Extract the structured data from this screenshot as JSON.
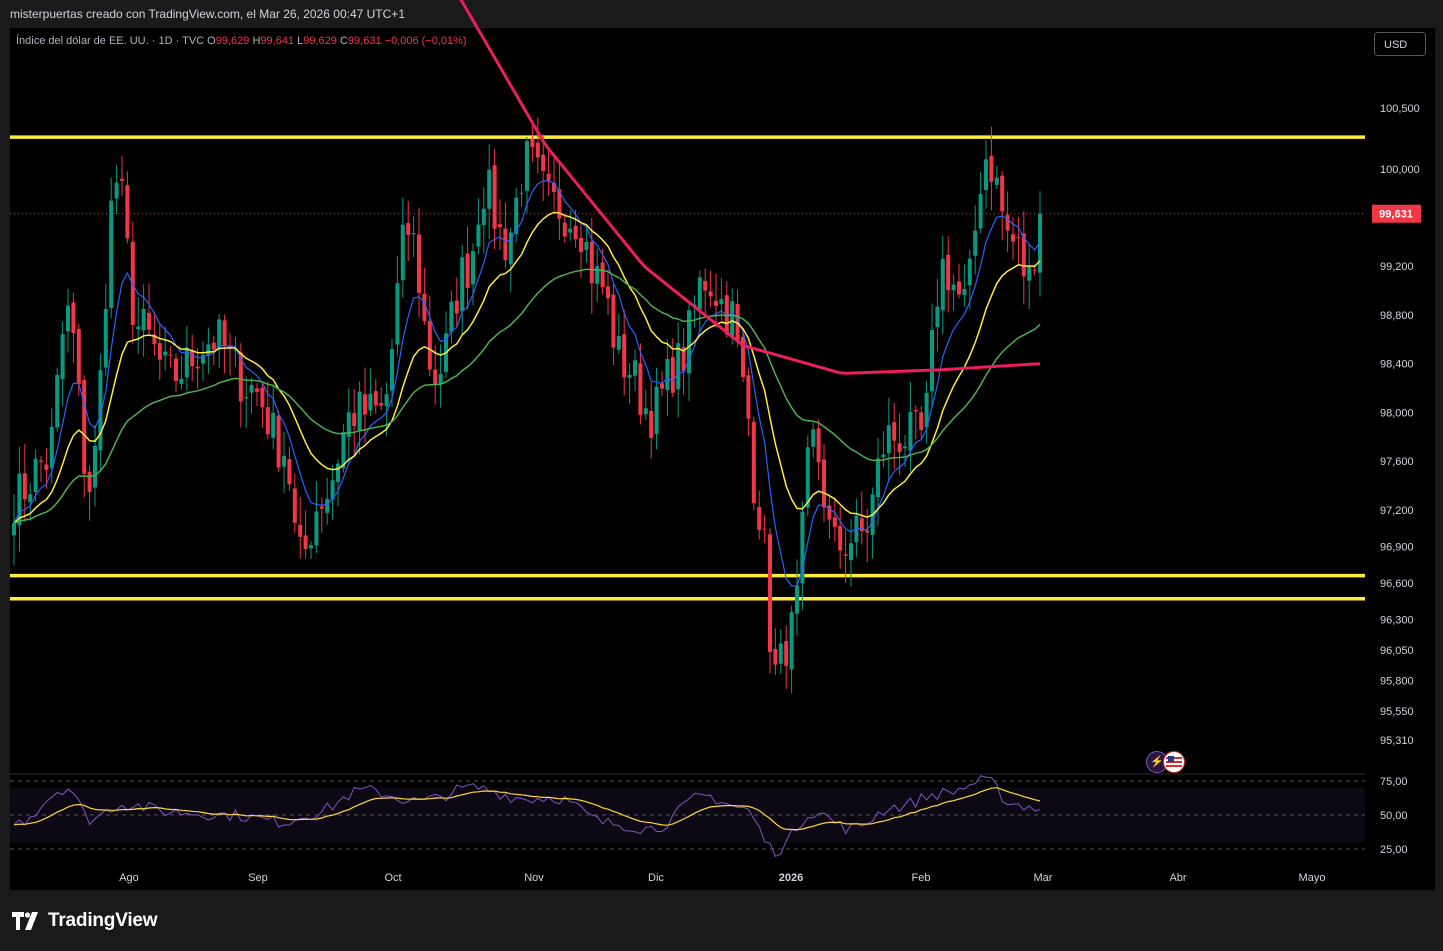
{
  "header": {
    "credit": "misterpuertas creado con TradingView.com, el Mar 26, 2026 00:47 UTC+1",
    "symbol": "Índice del dólar de EE. UU. · 1D · TVC",
    "o_label": "O",
    "o_value": "99,629",
    "h_label": "H",
    "h_value": "99,641",
    "l_label": "L",
    "l_value": "99,629",
    "c_label": "C",
    "c_value": "99,631",
    "change": "−0,006 (−0,01%)"
  },
  "currency_button": "USD",
  "price_tag": "99,631",
  "branding": {
    "wordmark": "TradingView"
  },
  "colors": {
    "up": "#089981",
    "down": "#f23645",
    "sr_lines": "#ffeb3b",
    "ma_fast": "#2962ff",
    "ma_mid": "#ffeb3b",
    "ma_slow": "#4caf50",
    "ma_long": "#ec1e5c",
    "rsi": "#7e57c2",
    "rsi_ma": "#fdd835"
  },
  "chart_data": {
    "type": "candlestick",
    "symbol": "Índice del dólar de EE. UU.",
    "timeframe": "1D",
    "price_axis": [
      "100,500",
      "100,000",
      "99,200",
      "98,800",
      "98,400",
      "98,000",
      "97,600",
      "97,200",
      "96,900",
      "96,600",
      "96,300",
      "96,050",
      "95,800",
      "95,550",
      "95,310"
    ],
    "time_axis": [
      "Ago",
      "Sep",
      "Oct",
      "Nov",
      "Dic",
      "2026",
      "Feb",
      "Mar",
      "Abr",
      "Mayo"
    ],
    "last_price": 99.631,
    "horizontal_levels": [
      100.26,
      96.66,
      96.47
    ],
    "anchors": [
      {
        "t": 0,
        "p": 97.3
      },
      {
        "t": 6,
        "p": 97.6
      },
      {
        "t": 10,
        "p": 98.8
      },
      {
        "t": 14,
        "p": 97.4
      },
      {
        "t": 19,
        "p": 99.9
      },
      {
        "t": 23,
        "p": 98.7
      },
      {
        "t": 29,
        "p": 98.3
      },
      {
        "t": 37,
        "p": 98.6
      },
      {
        "t": 44,
        "p": 98.2
      },
      {
        "t": 50,
        "p": 97.7
      },
      {
        "t": 53,
        "p": 96.8
      },
      {
        "t": 57,
        "p": 97.3
      },
      {
        "t": 63,
        "p": 98.0
      },
      {
        "t": 68,
        "p": 98.0
      },
      {
        "t": 73,
        "p": 99.5
      },
      {
        "t": 78,
        "p": 98.3
      },
      {
        "t": 84,
        "p": 99.2
      },
      {
        "t": 87,
        "p": 99.85
      },
      {
        "t": 91,
        "p": 99.4
      },
      {
        "t": 95,
        "p": 100.05
      },
      {
        "t": 100,
        "p": 99.7
      },
      {
        "t": 104,
        "p": 99.6
      },
      {
        "t": 108,
        "p": 99.1
      },
      {
        "t": 113,
        "p": 98.4
      },
      {
        "t": 118,
        "p": 98.0
      },
      {
        "t": 123,
        "p": 98.4
      },
      {
        "t": 128,
        "p": 99.1
      },
      {
        "t": 133,
        "p": 98.8
      },
      {
        "t": 135,
        "p": 98.2
      },
      {
        "t": 138,
        "p": 97.2
      },
      {
        "t": 141,
        "p": 95.85
      },
      {
        "t": 144,
        "p": 96.2
      },
      {
        "t": 148,
        "p": 97.75
      },
      {
        "t": 152,
        "p": 96.9
      },
      {
        "t": 157,
        "p": 97.0
      },
      {
        "t": 162,
        "p": 97.8
      },
      {
        "t": 168,
        "p": 97.8
      },
      {
        "t": 172,
        "p": 99.2
      },
      {
        "t": 176,
        "p": 98.9
      },
      {
        "t": 180,
        "p": 100.1
      },
      {
        "t": 185,
        "p": 99.4
      },
      {
        "t": 188,
        "p": 99.1
      },
      {
        "t": 190,
        "p": 99.631
      }
    ],
    "rsi": {
      "levels": [
        "75,00",
        "50,00",
        "25,00"
      ],
      "anchors": [
        {
          "t": 0,
          "v": 44
        },
        {
          "t": 10,
          "v": 70
        },
        {
          "t": 14,
          "v": 47
        },
        {
          "t": 20,
          "v": 58
        },
        {
          "t": 30,
          "v": 52
        },
        {
          "t": 40,
          "v": 50
        },
        {
          "t": 50,
          "v": 45
        },
        {
          "t": 55,
          "v": 51
        },
        {
          "t": 65,
          "v": 68
        },
        {
          "t": 75,
          "v": 60
        },
        {
          "t": 85,
          "v": 70
        },
        {
          "t": 95,
          "v": 62
        },
        {
          "t": 100,
          "v": 63
        },
        {
          "t": 110,
          "v": 44
        },
        {
          "t": 118,
          "v": 40
        },
        {
          "t": 128,
          "v": 64
        },
        {
          "t": 135,
          "v": 55
        },
        {
          "t": 141,
          "v": 24
        },
        {
          "t": 148,
          "v": 52
        },
        {
          "t": 155,
          "v": 40
        },
        {
          "t": 163,
          "v": 56
        },
        {
          "t": 172,
          "v": 66
        },
        {
          "t": 180,
          "v": 75
        },
        {
          "t": 185,
          "v": 58
        },
        {
          "t": 190,
          "v": 55
        }
      ]
    }
  }
}
